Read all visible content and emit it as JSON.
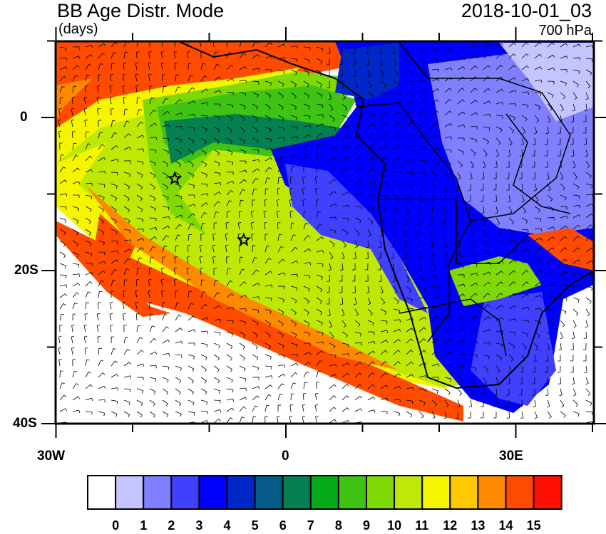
{
  "header": {
    "title": "BB Age Distr. Mode",
    "units": "(days)",
    "datetime": "2018-10-01_03",
    "level": "700 hPa"
  },
  "map": {
    "lat_labels": [
      "0",
      "20S",
      "40S"
    ],
    "lon_labels": [
      "30W",
      "0",
      "30E"
    ],
    "extent": {
      "lon": [
        -30,
        40
      ],
      "lat": [
        -40,
        10
      ]
    },
    "markers": [
      {
        "type": "star",
        "lon": -14.5,
        "lat": -8
      },
      {
        "type": "star",
        "lon": -5.5,
        "lat": -16
      }
    ],
    "overlay": "wind barbs"
  },
  "colorbar": {
    "labels": [
      "0",
      "1",
      "2",
      "3",
      "4",
      "5",
      "6",
      "7",
      "8",
      "9",
      "10",
      "11",
      "12",
      "13",
      "14",
      "15"
    ],
    "colors": [
      "#ffffff",
      "#c4c4ff",
      "#8080ff",
      "#4040ff",
      "#0000ff",
      "#0028c8",
      "#055a88",
      "#058050",
      "#05aa19",
      "#40c414",
      "#80d805",
      "#bee805",
      "#f5f500",
      "#ffc800",
      "#ff8a00",
      "#ff4b00",
      "#ff1000"
    ]
  }
}
